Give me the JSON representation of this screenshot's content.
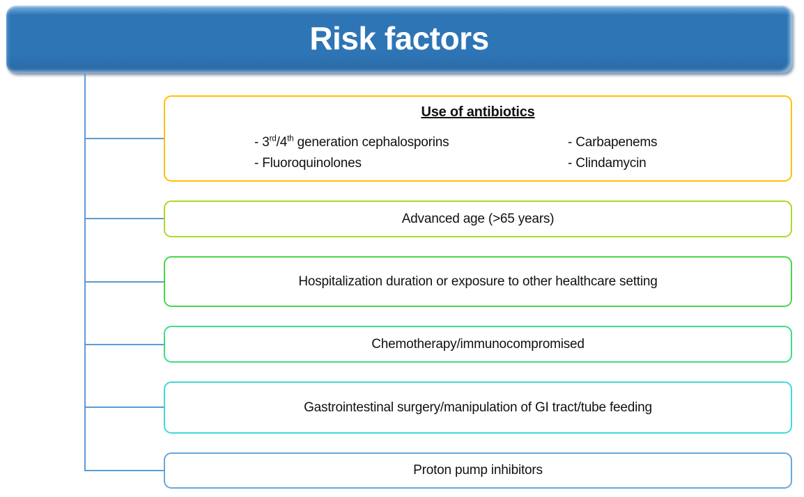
{
  "header": {
    "title": "Risk factors",
    "fill": "#2E75B6",
    "text_color": "#FFFFFF"
  },
  "connector_color": "#5B9BD5",
  "boxes": [
    {
      "id": "use-of-antibiotics",
      "border_color": "#FFC000",
      "title": "Use of antibiotics",
      "columns": [
        {
          "items": [
            {
              "parts": [
                {
                  "t": "- 3"
                },
                {
                  "t": "rd",
                  "sup": true
                },
                {
                  "t": "/4"
                },
                {
                  "t": "th",
                  "sup": true
                },
                {
                  "t": " generation cephalosporins"
                }
              ]
            },
            {
              "parts": [
                {
                  "t": "- Fluoroquinolones"
                }
              ]
            }
          ]
        },
        {
          "items": [
            {
              "parts": [
                {
                  "t": "- Carbapenems"
                }
              ]
            },
            {
              "parts": [
                {
                  "t": "- Clindamycin"
                }
              ]
            }
          ]
        }
      ]
    },
    {
      "id": "advanced-age",
      "border_color": "#ACD82D",
      "label": "Advanced age (>65 years)"
    },
    {
      "id": "hospitalization",
      "border_color": "#47D64B",
      "label": "Hospitalization duration or exposure to other healthcare setting"
    },
    {
      "id": "chemotherapy",
      "border_color": "#3EDC84",
      "label": "Chemotherapy/immunocompromised"
    },
    {
      "id": "gi-surgery",
      "border_color": "#43D8D8",
      "label": "Gastrointestinal surgery/manipulation of GI tract/tube feeding"
    },
    {
      "id": "proton-pump",
      "border_color": "#68A6DB",
      "label": "Proton pump inhibitors"
    }
  ]
}
